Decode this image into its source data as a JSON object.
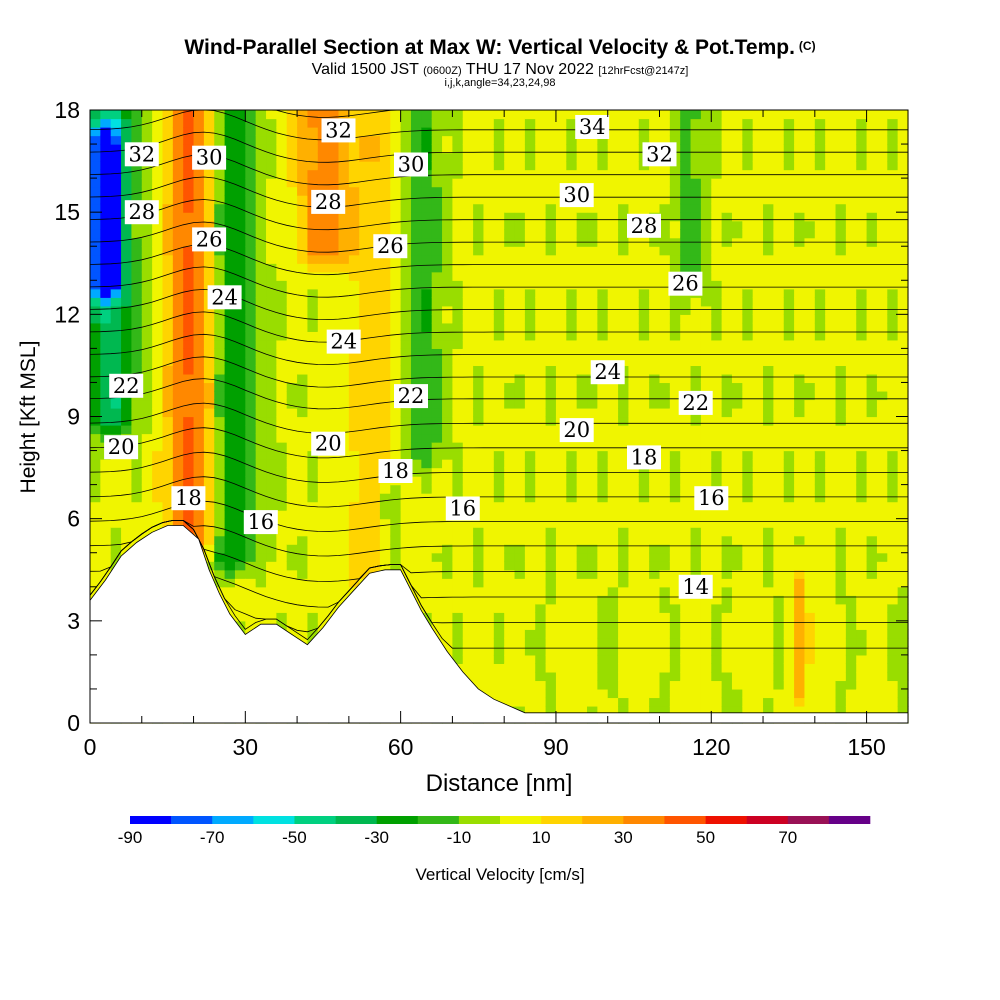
{
  "header": {
    "title": "Wind-Parallel Section at Max W: Vertical Velocity & Pot.Temp.",
    "copyright": "(C)",
    "valid_prefix": "Valid 1500 JST",
    "utc": "(0600Z)",
    "valid_suffix": "THU 17 Nov 2022",
    "forecast": "[12hrFcst@2147z]",
    "indices": "i,j,k,angle=34,23,24,98"
  },
  "chart_data": {
    "type": "heatmap",
    "title": "Wind-Parallel Section at Max W: Vertical Velocity & Pot.Temp.",
    "xlabel": "Distance [nm]",
    "ylabel": "Height [Kft MSL]",
    "xlim": [
      0,
      158
    ],
    "ylim": [
      0,
      18
    ],
    "x_ticks": [
      "0",
      "30",
      "60",
      "90",
      "120",
      "150"
    ],
    "y_ticks": [
      "0",
      "3",
      "6",
      "9",
      "12",
      "15",
      "18"
    ],
    "grid": false,
    "colorbar": {
      "label": "Vertical Velocity [cm/s]",
      "tick_labels": [
        "-90",
        "-70",
        "-50",
        "-30",
        "-10",
        "10",
        "30",
        "50",
        "70"
      ],
      "boundaries": [
        -90,
        -80,
        -70,
        -60,
        -50,
        -40,
        -30,
        -20,
        -10,
        0,
        10,
        20,
        30,
        40,
        50,
        60,
        70,
        80
      ],
      "colors": [
        "#0000ff",
        "#0055ff",
        "#00aaff",
        "#00e1e1",
        "#00d080",
        "#00b850",
        "#00a000",
        "#33b818",
        "#99dd00",
        "#f0f500",
        "#ffd400",
        "#ffb000",
        "#ff8800",
        "#ff5500",
        "#ee1100",
        "#cc0022",
        "#991155",
        "#660088"
      ]
    },
    "velocity_features": [
      {
        "x_center": 4,
        "x_halfwidth": 5,
        "y_range": [
          9,
          18
        ],
        "value": -40
      },
      {
        "x_center": 3,
        "x_halfwidth": 3,
        "y_range": [
          13,
          17
        ],
        "value": -75
      },
      {
        "x_center": 20,
        "x_halfwidth": 5,
        "y_range": [
          5.5,
          18
        ],
        "value": 45
      },
      {
        "x_center": 27,
        "x_halfwidth": 5,
        "y_range": [
          5,
          18
        ],
        "value": -32
      },
      {
        "x_center": 45,
        "x_halfwidth": 5,
        "y_range": [
          14,
          18
        ],
        "value": 35
      },
      {
        "x_center": 55,
        "x_halfwidth": 6,
        "y_range": [
          4.5,
          18
        ],
        "value": 15
      },
      {
        "x_center": 64,
        "x_halfwidth": 4,
        "y_range": [
          8,
          18
        ],
        "value": -22
      },
      {
        "x_center": 58,
        "x_halfwidth": 2,
        "y_range": [
          4.5,
          6.5
        ],
        "value": -20
      },
      {
        "x_center": 116,
        "x_halfwidth": 3,
        "y_range": [
          13,
          18
        ],
        "value": -15
      },
      {
        "x_center": 137,
        "x_halfwidth": 1.5,
        "y_range": [
          1,
          4
        ],
        "value": 25
      }
    ],
    "terrain_kft": [
      [
        0,
        3.6
      ],
      [
        3,
        4.2
      ],
      [
        6,
        4.9
      ],
      [
        9,
        5.3
      ],
      [
        12,
        5.6
      ],
      [
        15,
        5.8
      ],
      [
        18,
        5.8
      ],
      [
        21,
        5.4
      ],
      [
        23,
        4.5
      ],
      [
        25,
        3.8
      ],
      [
        27,
        3.2
      ],
      [
        30,
        2.6
      ],
      [
        33,
        2.9
      ],
      [
        36,
        2.9
      ],
      [
        39,
        2.6
      ],
      [
        42,
        2.3
      ],
      [
        45,
        2.8
      ],
      [
        48,
        3.4
      ],
      [
        51,
        3.9
      ],
      [
        54,
        4.4
      ],
      [
        57,
        4.5
      ],
      [
        60,
        4.5
      ],
      [
        62,
        3.9
      ],
      [
        64,
        3.3
      ],
      [
        66,
        2.8
      ],
      [
        69,
        2.1
      ],
      [
        72,
        1.5
      ],
      [
        75,
        1.0
      ],
      [
        78,
        0.7
      ],
      [
        81,
        0.5
      ],
      [
        84,
        0.3
      ],
      [
        158,
        0.3
      ]
    ],
    "theta_contour_interval_C": 1,
    "theta_labels": [
      {
        "value": "32",
        "x": 10,
        "y": 16.7
      },
      {
        "value": "30",
        "x": 23,
        "y": 16.6
      },
      {
        "value": "28",
        "x": 10,
        "y": 15.0
      },
      {
        "value": "26",
        "x": 23,
        "y": 14.2
      },
      {
        "value": "24",
        "x": 26,
        "y": 12.5
      },
      {
        "value": "22",
        "x": 7,
        "y": 9.9
      },
      {
        "value": "20",
        "x": 6,
        "y": 8.1
      },
      {
        "value": "18",
        "x": 19,
        "y": 6.6
      },
      {
        "value": "16",
        "x": 33,
        "y": 5.9
      },
      {
        "value": "32",
        "x": 48,
        "y": 17.4
      },
      {
        "value": "28",
        "x": 46,
        "y": 15.3
      },
      {
        "value": "30",
        "x": 62,
        "y": 16.4
      },
      {
        "value": "26",
        "x": 58,
        "y": 14.0
      },
      {
        "value": "24",
        "x": 49,
        "y": 11.2
      },
      {
        "value": "22",
        "x": 62,
        "y": 9.6
      },
      {
        "value": "20",
        "x": 46,
        "y": 8.2
      },
      {
        "value": "18",
        "x": 59,
        "y": 7.4
      },
      {
        "value": "16",
        "x": 72,
        "y": 6.3
      },
      {
        "value": "34",
        "x": 97,
        "y": 17.5
      },
      {
        "value": "32",
        "x": 110,
        "y": 16.7
      },
      {
        "value": "30",
        "x": 94,
        "y": 15.5
      },
      {
        "value": "28",
        "x": 107,
        "y": 14.6
      },
      {
        "value": "26",
        "x": 115,
        "y": 12.9
      },
      {
        "value": "24",
        "x": 100,
        "y": 10.3
      },
      {
        "value": "22",
        "x": 117,
        "y": 9.4
      },
      {
        "value": "20",
        "x": 94,
        "y": 8.6
      },
      {
        "value": "18",
        "x": 107,
        "y": 7.8
      },
      {
        "value": "16",
        "x": 120,
        "y": 6.6
      },
      {
        "value": "14",
        "x": 117,
        "y": 4.0
      }
    ]
  }
}
